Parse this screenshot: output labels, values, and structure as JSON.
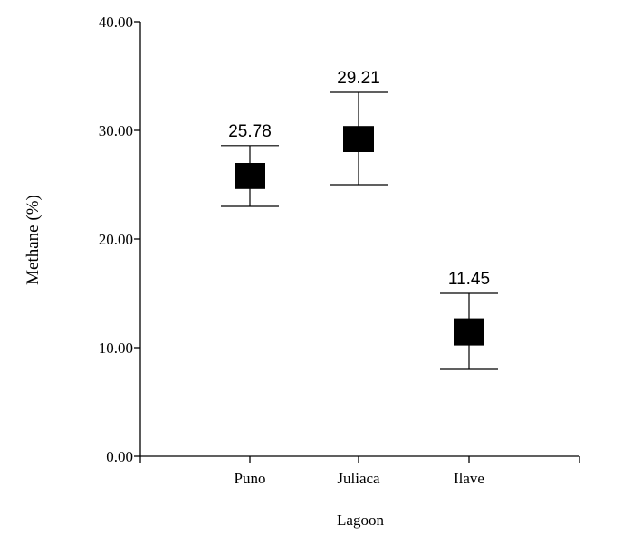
{
  "chart_data": {
    "type": "scatter",
    "title": "",
    "xlabel": "Lagoon",
    "ylabel": "Methane (%)",
    "categories": [
      "Puno",
      "Juliaca",
      "Ilave"
    ],
    "series": [
      {
        "name": "Methane",
        "values": [
          25.78,
          29.21,
          11.45
        ],
        "box_low": [
          24.6,
          28.0,
          10.2
        ],
        "box_high": [
          27.0,
          30.4,
          12.7
        ],
        "whisker_low": [
          23.0,
          25.0,
          8.0
        ],
        "whisker_high": [
          28.6,
          33.5,
          15.0
        ],
        "data_labels": [
          "25.78",
          "29.21",
          "11.45"
        ]
      }
    ],
    "ylim": [
      0,
      40
    ],
    "yticks": [
      0,
      10,
      20,
      30,
      40
    ],
    "ytick_labels": [
      "0.00",
      "10.00",
      "20.00",
      "30.00",
      "40.00"
    ],
    "grid": false,
    "marker_color": "#000000"
  }
}
